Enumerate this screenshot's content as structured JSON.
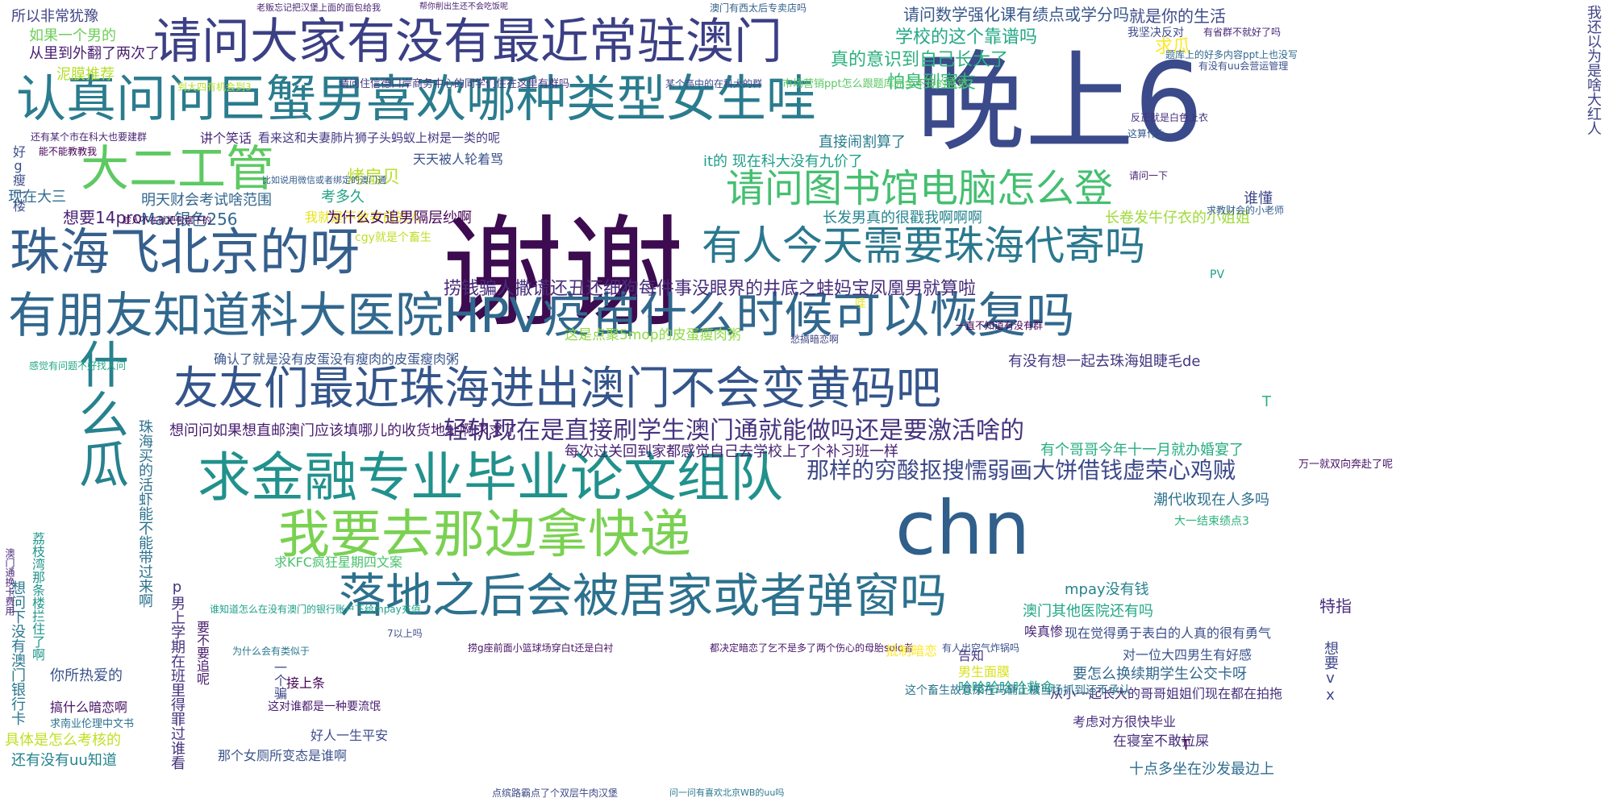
{
  "words": [
    {
      "text": "谢谢",
      "color": "#3d0b4f"
    },
    {
      "text": "晚上6",
      "color": "#3b4a8a"
    },
    {
      "text": "chn",
      "color": "#2f5f8a"
    },
    {
      "text": "请问大家有没有最近常驻澳门",
      "color": "#3b3f85"
    },
    {
      "text": "认真问问巨蟹男喜欢哪种类型女生哇",
      "color": "#2a7c8e"
    },
    {
      "text": "有朋友知道科大医院HPV疫苗什么时候可以恢复吗",
      "color": "#31688e"
    },
    {
      "text": "友友们最近珠海进出澳门不会变黄码吧",
      "color": "#34558b"
    },
    {
      "text": "求金融专业毕业论文组队",
      "color": "#21918c"
    },
    {
      "text": "我要去那边拿快递",
      "color": "#7ad151"
    },
    {
      "text": "落地之后会被居家或者弹窗吗",
      "color": "#2c718e"
    },
    {
      "text": "请问图书馆电脑怎么登",
      "color": "#44bf70"
    },
    {
      "text": "珠海飞北京的呀",
      "color": "#355f8d"
    },
    {
      "text": "有人今天需要珠海代寄吗",
      "color": "#2a788e"
    },
    {
      "text": "大二工管",
      "color": "#5ec962"
    },
    {
      "text": "什么瓜",
      "color": "#26828e"
    },
    {
      "text": "轻轨现在是直接刷学生澳门通就能做吗还是要激活啥的",
      "color": "#46337e"
    },
    {
      "text": "那样的穷酸抠搜懦弱画大饼借钱虚荣心鸡贼",
      "color": "#3e4989"
    },
    {
      "text": "捞钱骗人撒谎还丑还细狗每件事没眼界的井底之蛙妈宝凤凰男就算啦",
      "color": "#472d7b"
    },
    {
      "text": "请问数学强化课有绩点或学分吗",
      "color": "#38588c"
    },
    {
      "text": "学校的这个靠谱吗",
      "color": "#22a884"
    },
    {
      "text": "真的意识到自己长大了",
      "color": "#2ab07f"
    },
    {
      "text": "怕臭到室友",
      "color": "#35b779"
    },
    {
      "text": "就是你的生活",
      "color": "#3e4a89"
    },
    {
      "text": "求瓜",
      "color": "#fde725"
    },
    {
      "text": "所以非常犹豫",
      "color": "#414487"
    },
    {
      "text": "如果一个男的",
      "color": "#6ece58"
    },
    {
      "text": "从里到外翻了两次了",
      "color": "#481f70"
    },
    {
      "text": "泥膜推荐",
      "color": "#b5de2b"
    },
    {
      "text": "讲个笑话",
      "color": "#482878"
    },
    {
      "text": "看来这和夫妻肺片狮子头蚂蚁上树是一类的呢",
      "color": "#443983"
    },
    {
      "text": "还有某个市在科大也要建群",
      "color": "#482475"
    },
    {
      "text": "能不能教教我",
      "color": "#440154"
    },
    {
      "text": "天天被人轮着骂",
      "color": "#3b518b"
    },
    {
      "text": "直接闹割算了",
      "color": "#287d8e"
    },
    {
      "text": "it的 现在科大没有九价了",
      "color": "#1f9e89"
    },
    {
      "text": "烤扇贝",
      "color": "#b8de29"
    },
    {
      "text": "考多久",
      "color": "#20a386"
    },
    {
      "text": "我就是不敢表白的人",
      "color": "#e5e419"
    },
    {
      "text": "明天财会考试啥范围",
      "color": "#31668e"
    },
    {
      "text": "想要14pro",
      "color": "#482173"
    },
    {
      "text": "Max银色256",
      "color": "#30698e"
    },
    {
      "text": "为什么女追男隔层纱啊",
      "color": "#440154"
    },
    {
      "text": "长发男真的很戳我啊啊啊",
      "color": "#25848e"
    },
    {
      "text": "长卷发牛仔衣的小姐姐",
      "color": "#a0da39"
    },
    {
      "text": "谁懂",
      "color": "#3f4788"
    },
    {
      "text": "这是点聚5mop的皮蛋瘦肉粥",
      "color": "#8fd744"
    },
    {
      "text": "确认了就是没有皮蛋没有瘦肉的皮蛋瘦肉粥",
      "color": "#39558c"
    },
    {
      "text": "有没有想一起去珠海姐睫毛de",
      "color": "#453781"
    },
    {
      "text": "想问问如果想直邮澳门应该填哪儿的收货地址啊求求了",
      "color": "#481b6d"
    },
    {
      "text": "每次过关回到家都感觉自己去学校上了个补习班一样",
      "color": "#482173"
    },
    {
      "text": "有个哥哥今年十一月就办婚宴了",
      "color": "#27ad81"
    },
    {
      "text": "潮代收现在人多吗",
      "color": "#2d708e"
    },
    {
      "text": "大一结束绩点3",
      "color": "#2db27d"
    },
    {
      "text": "求KFC疯狂星期四文案",
      "color": "#4ac16d"
    },
    {
      "text": "mpay没有钱",
      "color": "#26828e"
    },
    {
      "text": "澳门其他医院还有吗",
      "color": "#22a785"
    },
    {
      "text": "现在觉得勇于表白的人真的很有勇气",
      "color": "#3c508b"
    },
    {
      "text": "唉真惨",
      "color": "#482677"
    },
    {
      "text": "对一位大四男生有好感",
      "color": "#3a548c"
    },
    {
      "text": "要怎么换续期学生公交卡呀",
      "color": "#31688e"
    },
    {
      "text": "从小一起长大的哥哥姐姐们现在都在拍拖",
      "color": "#46307e"
    },
    {
      "text": "哈哈哈哈哈救命",
      "color": "#1fa188"
    },
    {
      "text": "男生面膜",
      "color": "#d8e219"
    },
    {
      "text": "告知",
      "color": "#463480"
    },
    {
      "text": "接上条",
      "color": "#440154"
    },
    {
      "text": "好人一生平安",
      "color": "#3e4c8a"
    },
    {
      "text": "那个女厕所变态是谁啊",
      "color": "#3b528b"
    },
    {
      "text": "你所热爱的",
      "color": "#3b528b"
    },
    {
      "text": "搞什么暗恋啊",
      "color": "#471063"
    },
    {
      "text": "具体是怎么考核的",
      "color": "#c2df23"
    },
    {
      "text": "还有没有uu知道",
      "color": "#25838e"
    },
    {
      "text": "求南业伦理中文书",
      "color": "#2c728e"
    },
    {
      "text": "考虑对方很快毕业",
      "color": "#472c7a"
    },
    {
      "text": "在寝室不敢拉屎",
      "color": "#472f7d"
    },
    {
      "text": "十点多坐在沙发最边上",
      "color": "#2e6e8e"
    },
    {
      "text": "想要vx",
      "color": "#3f4889"
    },
    {
      "text": "特指",
      "color": "#472d7b"
    },
    {
      "text": "万一就双向奔赴了呢",
      "color": "#481467"
    },
    {
      "text": "点缤路霸点了个双层牛肉汉堡",
      "color": "#3e4989"
    },
    {
      "text": "问一问有喜欢北京WB的uu吗",
      "color": "#2a788e"
    },
    {
      "text": "老贩忘记把汉堡上面的面包给我",
      "color": "#482576"
    },
    {
      "text": "帮你削出生还不会吃饭呢",
      "color": "#481f70"
    },
    {
      "text": "澳门有西太后专卖店吗",
      "color": "#34618d"
    },
    {
      "text": "请问住信德口岸商务中心的同学们住在这里有群吗",
      "color": "#453781"
    },
    {
      "text": "某个高中的在科大的群",
      "color": "#3e4a89"
    },
    {
      "text": "市场营销ppt怎么跟题库完全不符的感觉",
      "color": "#5cc863"
    },
    {
      "text": "题库上的好多内容ppt上也没写",
      "color": "#31688e"
    },
    {
      "text": "有没有uu会营运管理",
      "color": "#3b528b"
    },
    {
      "text": "我坚决反对",
      "color": "#3e4a89"
    },
    {
      "text": "有省群不就好了吗",
      "color": "#482878"
    },
    {
      "text": "求教财会的小老师",
      "color": "#355f8d"
    },
    {
      "text": "请问一下",
      "color": "#482475"
    },
    {
      "text": "这算什么",
      "color": "#375a8c"
    },
    {
      "text": "反正就是白色上衣",
      "color": "#46327e"
    },
    {
      "text": "到大四有机会到3",
      "color": "#b5de2b"
    },
    {
      "text": "比如说用微信或者绑定的澳门通",
      "color": "#365c8d"
    },
    {
      "text": "趁人不在就把包摆下的",
      "color": "#440154"
    },
    {
      "text": "感觉有问题不好找人问",
      "color": "#22a884"
    },
    {
      "text": "现在大三",
      "color": "#2f6c8e"
    },
    {
      "text": "我还以为是啥大红人",
      "color": "#414487"
    },
    {
      "text": "一直不知道有没有群",
      "color": "#440154"
    },
    {
      "text": "愁搞暗恋啊",
      "color": "#414487"
    },
    {
      "text": "cgy就是个畜生",
      "color": "#bddf26"
    },
    {
      "text": "好g瘦一楼",
      "color": "#3c4f8a"
    },
    {
      "text": "珠海买的活虾能不能带过来啊",
      "color": "#2c728e"
    },
    {
      "text": "p男上学期在班里得罪过谁看",
      "color": "#46337e"
    },
    {
      "text": "想问下没有澳门银行卡",
      "color": "#2a778e"
    },
    {
      "text": "荔枝湾那条楼拦住了啊",
      "color": "#1f968b"
    },
    {
      "text": "澳门通换卡费用",
      "color": "#482677"
    },
    {
      "text": "要不要追呢",
      "color": "#481b6d"
    },
    {
      "text": "谁知道怎么在没有澳门的银行账户下给mpay充值",
      "color": "#1fa188"
    },
    {
      "text": "为什么会有类似于",
      "color": "#2a788e"
    },
    {
      "text": "7以上吗",
      "color": "#3d4e8a"
    },
    {
      "text": "捞g座前面小篮球场穿白t还是白衬",
      "color": "#471365"
    },
    {
      "text": "都决定暗恋了乞不是多了两个伤心的母胎solo者",
      "color": "#481769"
    },
    {
      "text": "有人出空气炸锅吗",
      "color": "#3b528b"
    },
    {
      "text": "抵制暗恋",
      "color": "#fde725"
    },
    {
      "text": "这个畜生故意尿在马桶上被当场抓到还不承认",
      "color": "#2b748e"
    },
    {
      "text": "这对谁都是一种要流氓",
      "color": "#481c6e"
    },
    {
      "text": "一个骗",
      "color": "#3e4a89"
    },
    {
      "text": "PV",
      "color": "#1f9e89"
    },
    {
      "text": "哇",
      "color": "#e7e419"
    },
    {
      "text": "T",
      "color": "#2db27d"
    },
    {
      "text": "T",
      "color": "#440154"
    }
  ]
}
